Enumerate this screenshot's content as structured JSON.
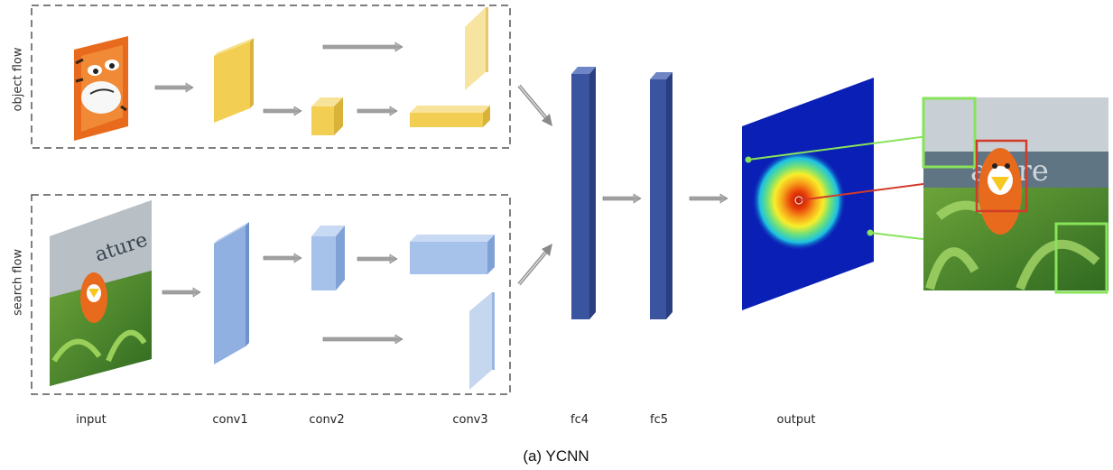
{
  "streams": {
    "object_flow": "object flow",
    "search_flow": "search flow"
  },
  "layers": {
    "input": "input",
    "conv1": "conv1",
    "conv2": "conv2",
    "conv3": "conv3",
    "fc4": "fc4",
    "fc5": "fc5",
    "output": "output"
  },
  "caption": "(a) YCNN",
  "target_photo": {
    "sign_text": "ature"
  },
  "colors": {
    "object_block": "#f2cf52",
    "search_block": "#8fb0e0",
    "fc_block": "#3a54a0",
    "heatmap_bg": "#0a1fb5",
    "box_green": "#88e35a",
    "box_red": "#d23a2a"
  }
}
